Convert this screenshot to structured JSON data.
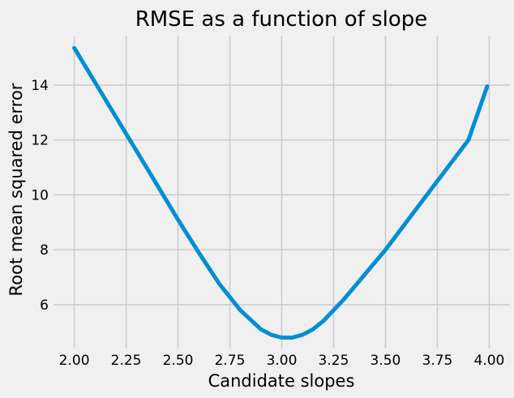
{
  "chart_data": {
    "type": "line",
    "title": "RMSE as a function of slope",
    "xlabel": "Candidate slopes",
    "ylabel": "Root mean squared error",
    "xlim": [
      1.9,
      4.1
    ],
    "ylim": [
      4.4,
      15.8
    ],
    "xticks": [
      "2.00",
      "2.25",
      "2.50",
      "2.75",
      "3.00",
      "3.25",
      "3.50",
      "3.75",
      "4.00"
    ],
    "yticks": [
      "6",
      "8",
      "10",
      "12",
      "14"
    ],
    "grid": true,
    "colors": {
      "background": "#f0f0f0",
      "grid": "#cbcbcb",
      "line": "#008fd5"
    },
    "series": [
      {
        "x": [
          2.0,
          2.1,
          2.2,
          2.3,
          2.4,
          2.5,
          2.6,
          2.7,
          2.8,
          2.9,
          2.95,
          3.0,
          3.05,
          3.1,
          3.15,
          3.2,
          3.3,
          3.4,
          3.5,
          3.6,
          3.7,
          3.8,
          3.9,
          3.99
        ],
        "y": [
          15.35,
          14.1,
          12.85,
          11.6,
          10.35,
          9.1,
          7.9,
          6.75,
          5.8,
          5.1,
          4.9,
          4.8,
          4.8,
          4.9,
          5.1,
          5.4,
          6.2,
          7.1,
          8.0,
          9.0,
          10.0,
          11.0,
          12.0,
          13.95
        ]
      }
    ]
  }
}
